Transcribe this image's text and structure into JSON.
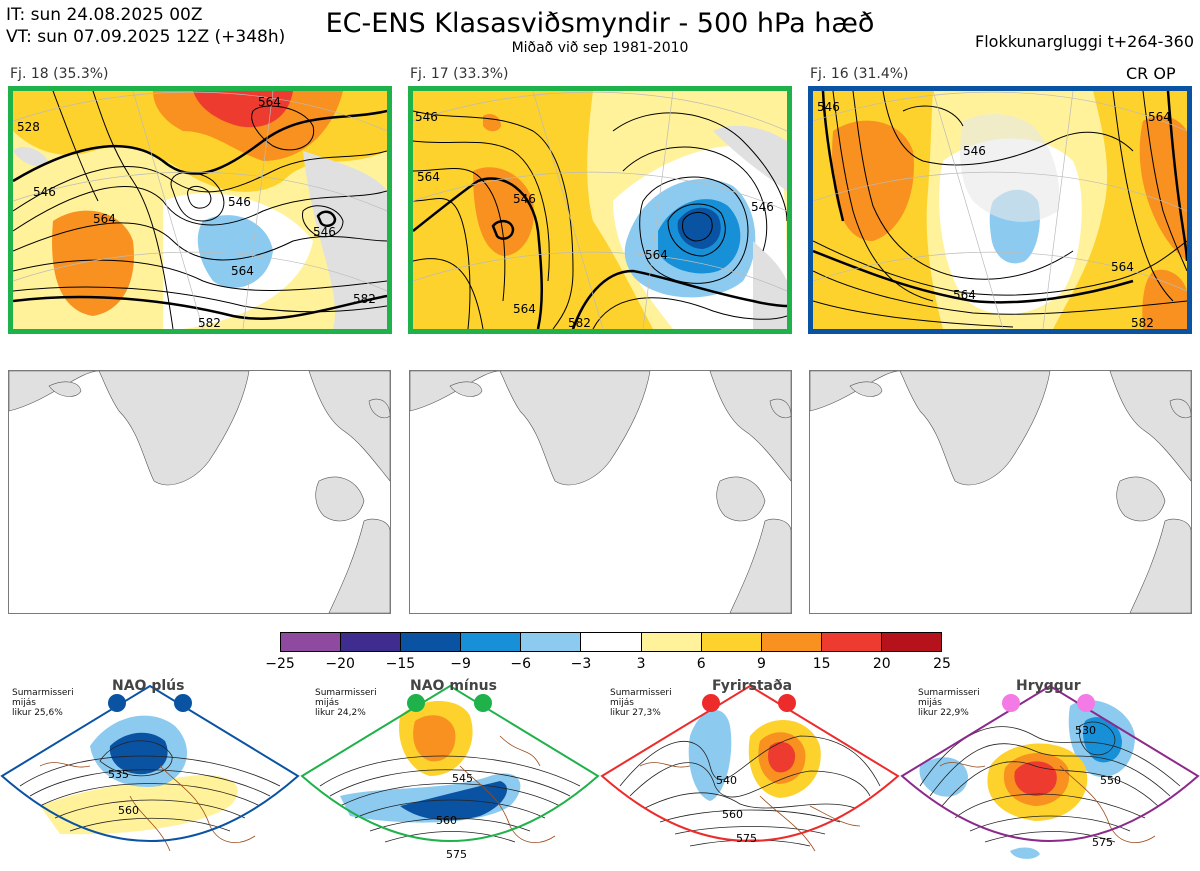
{
  "header": {
    "init_time": "IT: sun 24.08.2025 00Z",
    "valid_time": "VT: sun 07.09.2025 12Z  (+348h)",
    "title": "EC-ENS Klasasviðsmyndir - 500 hPa hæð",
    "subtitle": "Miðað við sep 1981-2010",
    "window": "Flokkunargluggi t+264-360"
  },
  "panels": [
    {
      "label": "Fj. 18 (35.3%)",
      "frame_color": "#1fb14a",
      "tag": "",
      "contour_labels": [
        "528",
        "546",
        "564",
        "564",
        "546",
        "546",
        "564",
        "582",
        "582"
      ]
    },
    {
      "label": "Fj. 17 (33.3%)",
      "frame_color": "#1fb14a",
      "tag": "",
      "contour_labels": [
        "546",
        "564",
        "546",
        "564",
        "546",
        "564",
        "582"
      ]
    },
    {
      "label": "Fj. 16 (31.4%)",
      "frame_color": "#0a53a3",
      "tag": "CR OP",
      "contour_labels": [
        "546",
        "546",
        "564",
        "564",
        "564",
        "582"
      ]
    }
  ],
  "legend": {
    "colors": [
      "#8e4a9e",
      "#3f2c8f",
      "#0a53a3",
      "#1790d8",
      "#8ccbef",
      "#ffffff",
      "#fff29a",
      "#fdd22d",
      "#f8911f",
      "#ee3b2f",
      "#b5121b"
    ],
    "ticks": [
      "−25",
      "−20",
      "−15",
      "−9",
      "−6",
      "−3",
      "3",
      "6",
      "9",
      "15",
      "20",
      "25"
    ]
  },
  "regimes": [
    {
      "name": "NAO plús",
      "note": [
        "Sumarmisseri",
        "mijás",
        "likur 25,6%"
      ],
      "color": "#0a53a3",
      "labels": [
        "535",
        "560"
      ]
    },
    {
      "name": "NAO mínus",
      "note": [
        "Sumarmisseri",
        "mijás",
        "likur 24,2%"
      ],
      "color": "#1fb14a",
      "labels": [
        "545",
        "560",
        "575"
      ]
    },
    {
      "name": "Fyrirstaða",
      "note": [
        "Sumarmisseri",
        "mijás",
        "likur 27,3%"
      ],
      "color": "#ee2b2b",
      "labels": [
        "540",
        "560",
        "575"
      ]
    },
    {
      "name": "Hryggur",
      "note": [
        "Sumarmisseri",
        "mijás",
        "likur 22,9%"
      ],
      "color": "#8b2a8b",
      "labels": [
        "530",
        "550",
        "575"
      ]
    }
  ]
}
